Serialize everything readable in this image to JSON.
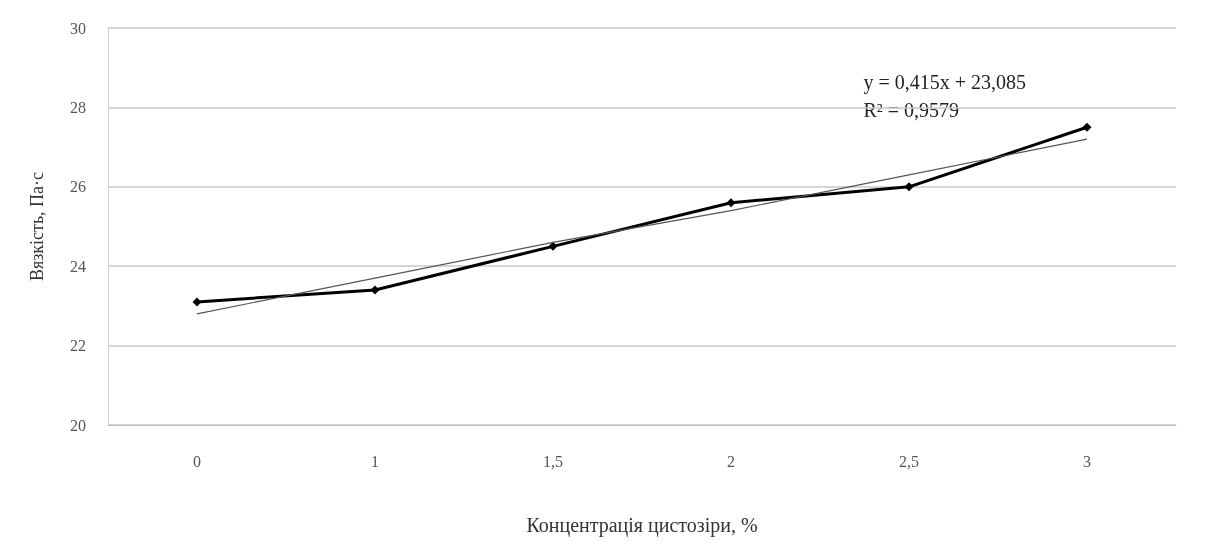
{
  "chart_data": {
    "type": "line",
    "xlabel": "Концентрація цистозіри, %",
    "ylabel": "Вязкість, Па·с",
    "categories": [
      "0",
      "1",
      "1,5",
      "2",
      "2,5",
      "3"
    ],
    "series": [
      {
        "color": "#000000",
        "values": [
          23.1,
          23.4,
          24.5,
          25.6,
          26.0,
          27.5
        ],
        "marker": "diamond"
      },
      {
        "type": "line",
        "color": "#555555",
        "x": [
          "0",
          "1",
          "1,5",
          "2",
          "2,5",
          "3"
        ],
        "values": [
          22.8,
          23.7,
          24.6,
          25.4,
          26.3,
          27.2
        ],
        "marker": "none"
      }
    ],
    "ylim": [
      20,
      30
    ],
    "yticks": [
      20,
      22,
      24,
      26,
      28,
      30
    ],
    "grid": "y",
    "annotations": [
      "y = 0,415x + 23,085\nR² = 0,9579"
    ]
  }
}
